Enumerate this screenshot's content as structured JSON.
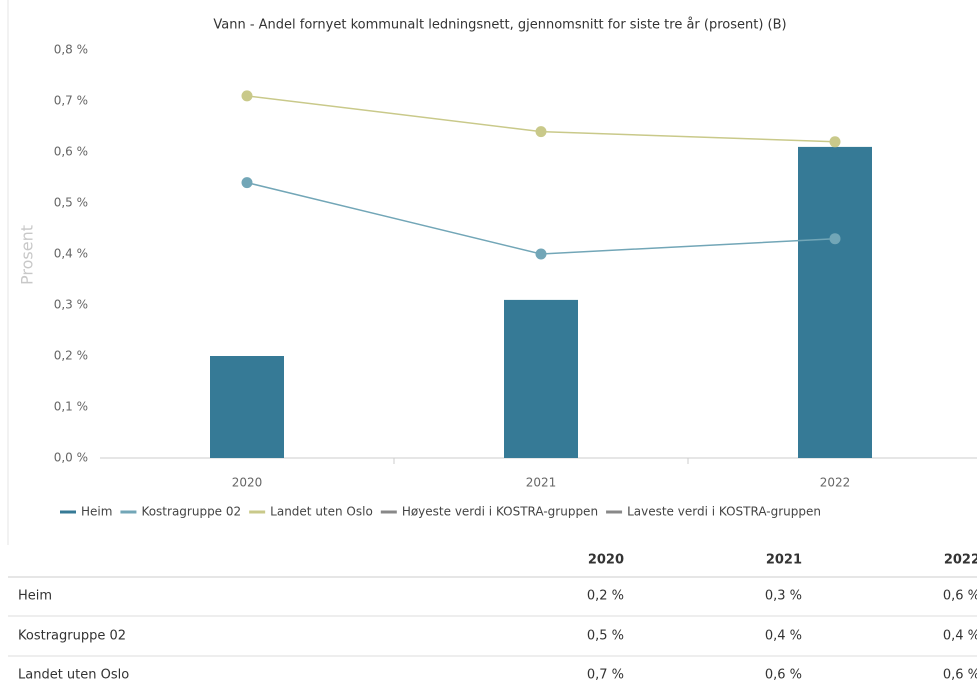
{
  "chart_data": {
    "type": "combo",
    "title": "Vann - Andel fornyet kommunalt ledningsnett, gjennomsnitt for siste tre år (prosent) (B)",
    "y_label": "Prosent",
    "categories": [
      "2020",
      "2021",
      "2022"
    ],
    "series": [
      {
        "name": "Heim",
        "type": "bar",
        "color": "#367a96",
        "values": [
          0.2,
          0.31,
          0.61
        ]
      },
      {
        "name": "Kostragruppe 02",
        "type": "line",
        "color": "#72a6b7",
        "values": [
          0.54,
          0.4,
          0.43
        ]
      },
      {
        "name": "Landet uten Oslo",
        "type": "line",
        "color": "#c9c98a",
        "values": [
          0.71,
          0.64,
          0.62
        ]
      },
      {
        "name": "Høyeste verdi i KOSTRA-gruppen",
        "type": "line",
        "color": "#888888",
        "values": [
          null,
          null,
          null
        ]
      },
      {
        "name": "Laveste verdi i KOSTRA-gruppen",
        "type": "line",
        "color": "#888888",
        "values": [
          null,
          null,
          null
        ]
      }
    ],
    "ylim": [
      0,
      0.8
    ],
    "yticks": [
      {
        "value": 0,
        "label": "0,0 %"
      },
      {
        "value": 0.1,
        "label": "0,1 %"
      },
      {
        "value": 0.2,
        "label": "0,2 %"
      },
      {
        "value": 0.3,
        "label": "0,3 %"
      },
      {
        "value": 0.4,
        "label": "0,4 %"
      },
      {
        "value": 0.5,
        "label": "0,5 %"
      },
      {
        "value": 0.6,
        "label": "0,6 %"
      },
      {
        "value": 0.7,
        "label": "0,7 %"
      },
      {
        "value": 0.8,
        "label": "0,8 %"
      }
    ],
    "legend": "bottom"
  },
  "table": {
    "columns": [
      "2020",
      "2021",
      "2022"
    ],
    "rows": [
      {
        "label": "Heim",
        "cells": [
          "0,2 %",
          "0,3 %",
          "0,6 %"
        ]
      },
      {
        "label": "Kostragruppe 02",
        "cells": [
          "0,5 %",
          "0,4 %",
          "0,4 %"
        ]
      },
      {
        "label": "Landet uten Oslo",
        "cells": [
          "0,7 %",
          "0,6 %",
          "0,6 %"
        ]
      }
    ]
  }
}
